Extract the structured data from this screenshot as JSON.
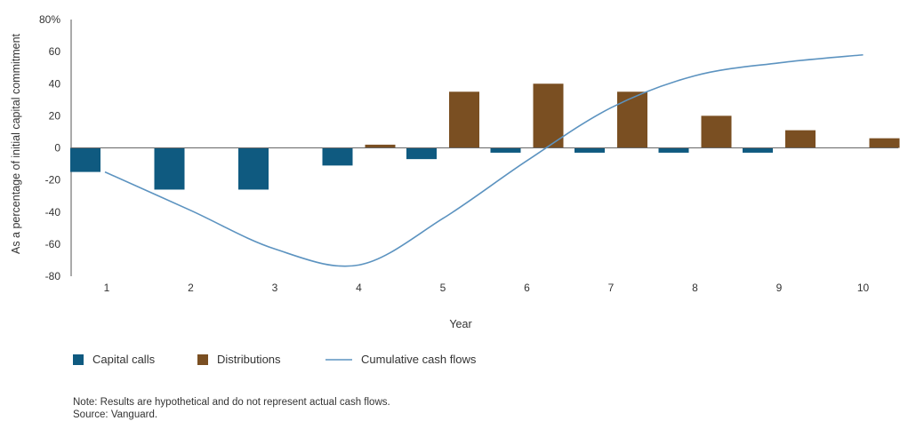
{
  "chart_data": {
    "type": "bar",
    "title": "",
    "xlabel": "Year",
    "ylabel": "As a percentage of initial capital commitment",
    "ylim": [
      -80,
      80
    ],
    "y_ticks": [
      {
        "value": 80,
        "label": "80%"
      },
      {
        "value": 60,
        "label": "60"
      },
      {
        "value": 40,
        "label": "40"
      },
      {
        "value": 20,
        "label": "20"
      },
      {
        "value": 0,
        "label": "0"
      },
      {
        "value": -20,
        "label": "-20"
      },
      {
        "value": -40,
        "label": "-40"
      },
      {
        "value": -60,
        "label": "-60"
      },
      {
        "value": -80,
        "label": "-80"
      }
    ],
    "categories": [
      "1",
      "2",
      "3",
      "4",
      "5",
      "6",
      "7",
      "8",
      "9",
      "10"
    ],
    "grid": false,
    "legend_position": "bottom-left",
    "series": [
      {
        "name": "Capital calls",
        "type": "bar",
        "color": "#0f5a80",
        "values": [
          -15,
          -26,
          -26,
          -11,
          -7,
          -3,
          -3,
          -3,
          -3,
          0
        ]
      },
      {
        "name": "Distributions",
        "type": "bar",
        "color": "#7a4f22",
        "values": [
          0,
          0,
          0,
          2,
          35,
          40,
          35,
          20,
          11,
          6
        ]
      },
      {
        "name": "Cumulative cash flows",
        "type": "line",
        "color": "#5c93c0",
        "values": [
          -15,
          -39,
          -63,
          -73,
          -44,
          -8,
          25,
          45,
          53,
          58
        ]
      }
    ]
  },
  "notes": {
    "note": "Note: Results are  hypothetical and do not represent actual cash flows.",
    "source": "Source: Vanguard."
  }
}
